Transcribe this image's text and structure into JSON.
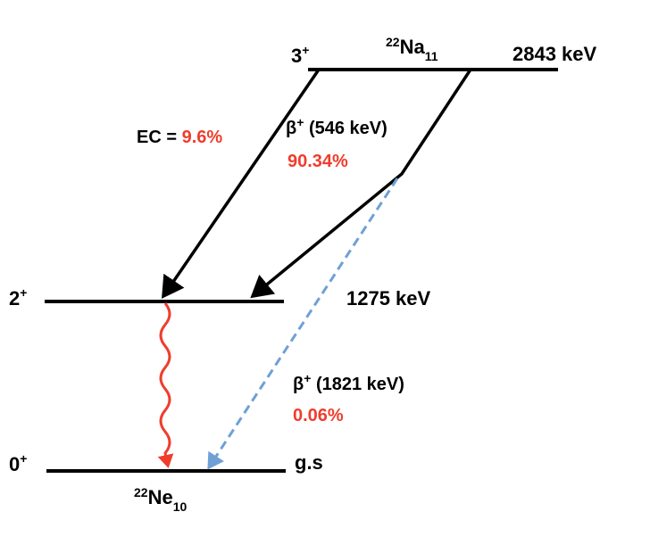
{
  "levels": [
    {
      "spin": "3",
      "parity": "+",
      "energy": "2843 keV"
    },
    {
      "spin": "2",
      "parity": "+",
      "energy": "1275 keV"
    },
    {
      "spin": "0",
      "parity": "+",
      "energy": "g.s"
    }
  ],
  "parent": {
    "mass": "22",
    "symbol": "Na",
    "neutrons": "11"
  },
  "daughter": {
    "mass": "22",
    "symbol": "Ne",
    "neutrons": "10"
  },
  "transitions": [
    {
      "label": "EC = ",
      "branch": "9.6%"
    },
    {
      "label": "β",
      "sup": "+",
      "energy": " (546 keV)",
      "branch": "90.34%"
    },
    {
      "label": "β",
      "sup": "+",
      "energy": " (1821 keV)",
      "branch": "0.06%"
    }
  ]
}
